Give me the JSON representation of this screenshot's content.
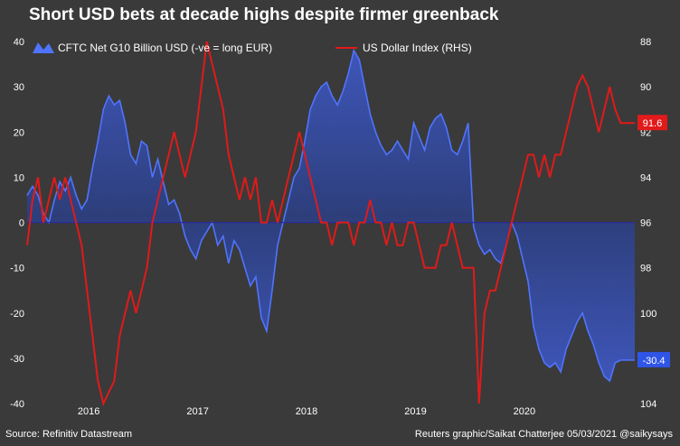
{
  "title": "Short USD bets at decade highs despite firmer greenback",
  "source": "Source: Refinitiv Datastream",
  "credit": "Reuters graphic/Saikat Chatterjee 05/03/2021 @saikysays",
  "colors": {
    "background": "#3a3a3a",
    "area_fill": "#2b3f86",
    "area_line": "#4f74ff",
    "usd_line": "#e11a1a",
    "zero_line": "#2a2a9a",
    "callout_usd": "#e11a1a",
    "callout_cftc": "#2f55e8"
  },
  "chart_data": {
    "type": "area+line",
    "title": "Short USD bets at decade highs despite firmer greenback",
    "x_tick_labels": [
      "2016",
      "2017",
      "2018",
      "2019",
      "2020"
    ],
    "x_tick_dates": [
      2016.0,
      2017.0,
      2018.0,
      2019.0,
      2020.0
    ],
    "x_range": [
      2015.6,
      2021.18
    ],
    "left_axis": {
      "ticks": [
        40,
        30,
        20,
        10,
        0,
        -10,
        -20,
        -30,
        -40
      ],
      "range": [
        -40,
        40
      ]
    },
    "right_axis": {
      "ticks": [
        88,
        90,
        92,
        94,
        96,
        98,
        100,
        102,
        104
      ],
      "range": [
        88,
        104
      ],
      "inverted": true
    },
    "legend": [
      "CFTC Net G10 Billion USD (-ve = long EUR)",
      "US Dollar Index (RHS)"
    ],
    "callouts": {
      "usd": "91.6",
      "cftc": "-30.4"
    },
    "series": [
      {
        "name": "CFTC Net G10 Billion USD (-ve = long EUR)",
        "axis": "left",
        "style": "area",
        "x": [
          2015.6,
          2015.65,
          2015.7,
          2015.75,
          2015.8,
          2015.85,
          2015.9,
          2015.95,
          2016.0,
          2016.05,
          2016.1,
          2016.15,
          2016.2,
          2016.25,
          2016.3,
          2016.35,
          2016.4,
          2016.45,
          2016.5,
          2016.55,
          2016.6,
          2016.65,
          2016.7,
          2016.75,
          2016.8,
          2016.85,
          2016.9,
          2016.95,
          2017.0,
          2017.05,
          2017.1,
          2017.15,
          2017.2,
          2017.25,
          2017.3,
          2017.35,
          2017.4,
          2017.45,
          2017.5,
          2017.55,
          2017.6,
          2017.65,
          2017.7,
          2017.75,
          2017.8,
          2017.85,
          2017.9,
          2017.95,
          2018.0,
          2018.05,
          2018.1,
          2018.15,
          2018.2,
          2018.25,
          2018.3,
          2018.35,
          2018.4,
          2018.45,
          2018.5,
          2018.55,
          2018.6,
          2018.65,
          2018.7,
          2018.75,
          2018.8,
          2018.85,
          2018.9,
          2018.95,
          2019.0,
          2019.05,
          2019.1,
          2019.15,
          2019.2,
          2019.25,
          2019.3,
          2019.35,
          2019.4,
          2019.45,
          2019.5,
          2019.55,
          2019.6,
          2019.65,
          2019.7,
          2019.75,
          2019.8,
          2019.85,
          2019.9,
          2019.95,
          2020.0,
          2020.05,
          2020.1,
          2020.15,
          2020.2,
          2020.25,
          2020.3,
          2020.35,
          2020.4,
          2020.45,
          2020.5,
          2020.55,
          2020.6,
          2020.65,
          2020.7,
          2020.75,
          2020.8,
          2020.85,
          2020.9,
          2020.95,
          2021.0,
          2021.05,
          2021.1,
          2021.15,
          2021.18
        ],
        "y": [
          6,
          8,
          6,
          2,
          0,
          5,
          9,
          7,
          10,
          6,
          3,
          5,
          12,
          18,
          25,
          28,
          26,
          27,
          22,
          15,
          13,
          18,
          17,
          10,
          14,
          9,
          4,
          5,
          2,
          -3,
          -6,
          -8,
          -4,
          -2,
          0,
          -5,
          -3,
          -9,
          -4,
          -6,
          -10,
          -14,
          -12,
          -21,
          -24,
          -15,
          -5,
          0,
          5,
          10,
          12,
          18,
          25,
          28,
          30,
          31,
          28,
          26,
          29,
          33,
          38,
          36,
          30,
          24,
          20,
          17,
          15,
          16,
          18,
          16,
          14,
          22,
          19,
          16,
          21,
          23,
          24,
          21,
          16,
          15,
          18,
          22,
          -1,
          -5,
          -7,
          -6,
          -8,
          -9,
          -5,
          0,
          -3,
          -8,
          -13,
          -23,
          -28,
          -31,
          -32,
          -31,
          -33,
          -28,
          -25,
          -22,
          -20,
          -24,
          -27,
          -31,
          -34,
          -35,
          -31,
          -30.4,
          -30.4,
          -30.4,
          -30.4
        ]
      },
      {
        "name": "US Dollar Index (RHS)",
        "axis": "right",
        "style": "line",
        "x": [
          2015.6,
          2015.65,
          2015.7,
          2015.75,
          2015.8,
          2015.85,
          2015.9,
          2015.95,
          2016.0,
          2016.05,
          2016.1,
          2016.15,
          2016.2,
          2016.25,
          2016.3,
          2016.35,
          2016.4,
          2016.45,
          2016.5,
          2016.55,
          2016.6,
          2016.65,
          2016.7,
          2016.75,
          2016.8,
          2016.85,
          2016.9,
          2016.95,
          2017.0,
          2017.05,
          2017.1,
          2017.15,
          2017.2,
          2017.25,
          2017.3,
          2017.35,
          2017.4,
          2017.45,
          2017.5,
          2017.55,
          2017.6,
          2017.65,
          2017.7,
          2017.75,
          2017.8,
          2017.85,
          2017.9,
          2017.95,
          2018.0,
          2018.05,
          2018.1,
          2018.15,
          2018.2,
          2018.25,
          2018.3,
          2018.35,
          2018.4,
          2018.45,
          2018.5,
          2018.55,
          2018.6,
          2018.65,
          2018.7,
          2018.75,
          2018.8,
          2018.85,
          2018.9,
          2018.95,
          2019.0,
          2019.05,
          2019.1,
          2019.15,
          2019.2,
          2019.25,
          2019.3,
          2019.35,
          2019.4,
          2019.45,
          2019.5,
          2019.55,
          2019.6,
          2019.65,
          2019.7,
          2019.75,
          2019.8,
          2019.85,
          2019.9,
          2019.95,
          2020.0,
          2020.05,
          2020.1,
          2020.15,
          2020.2,
          2020.25,
          2020.3,
          2020.35,
          2020.4,
          2020.45,
          2020.5,
          2020.55,
          2020.6,
          2020.65,
          2020.7,
          2020.75,
          2020.8,
          2020.85,
          2020.9,
          2020.95,
          2021.0,
          2021.05,
          2021.1,
          2021.15,
          2021.18
        ],
        "y": [
          97,
          95,
          94,
          96,
          95,
          94,
          95,
          94,
          95,
          96,
          97,
          99,
          101,
          103,
          104,
          103.5,
          103,
          101,
          100,
          99,
          100,
          99,
          98,
          96,
          95,
          94,
          93,
          92,
          93,
          94,
          93,
          92,
          90,
          88,
          89,
          90,
          91,
          93,
          94,
          95,
          94,
          95,
          94,
          96,
          96,
          95,
          96,
          95,
          94,
          93,
          92,
          93,
          94,
          95,
          96,
          96,
          97,
          96,
          96,
          96,
          97,
          96,
          96,
          95,
          96,
          96,
          97,
          96,
          97,
          97,
          96,
          96,
          97,
          98,
          98,
          98,
          97,
          97,
          96,
          97,
          98,
          98,
          98,
          104,
          100,
          99,
          99,
          98,
          97,
          96,
          95,
          94,
          93,
          93,
          94,
          93,
          94,
          93,
          93,
          92,
          91,
          90,
          89.5,
          90,
          91,
          92,
          91,
          90,
          91,
          91.6,
          91.6,
          91.6,
          91.6
        ]
      }
    ]
  }
}
